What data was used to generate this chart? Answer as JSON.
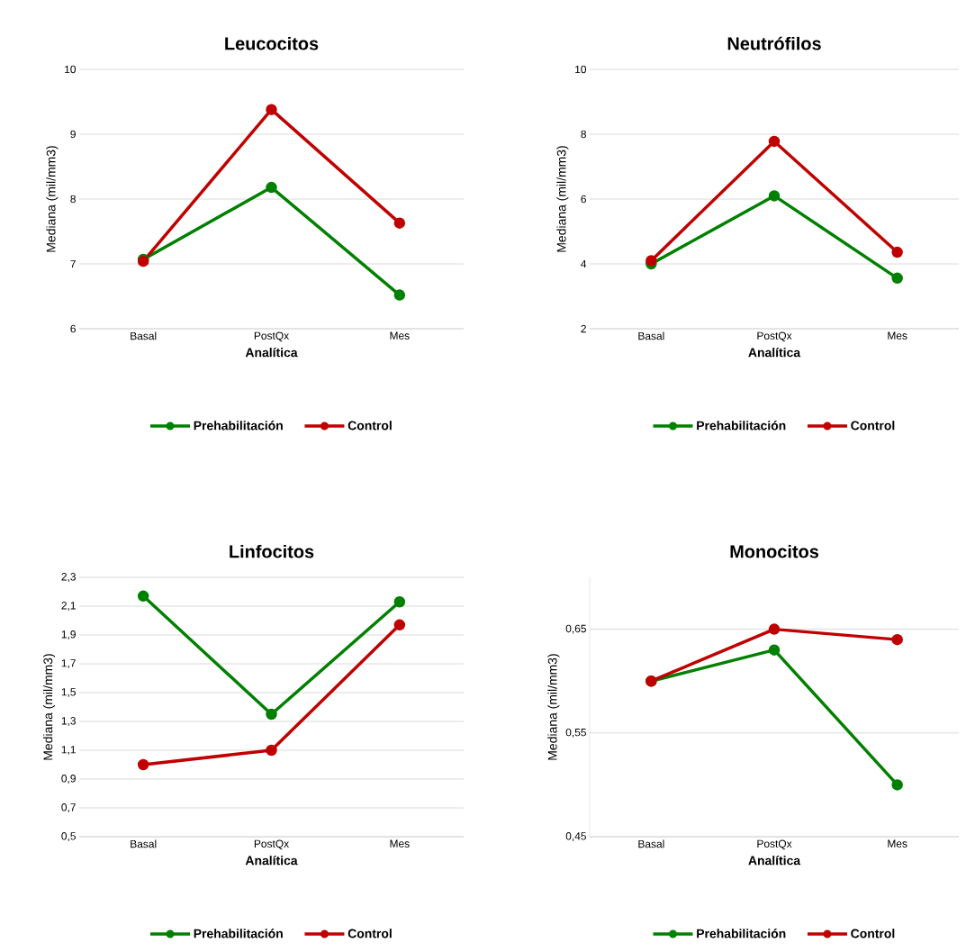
{
  "chart_data": [
    {
      "type": "line",
      "title": "Leucocitos",
      "xlabel": "Analítica",
      "ylabel": "Mediana (mil/mm3)",
      "categories": [
        "Basal",
        "PostQx",
        "Mes"
      ],
      "ylim": [
        6,
        10
      ],
      "yticks": [
        6,
        7,
        8,
        9,
        10
      ],
      "grid": "y",
      "legend": "bottom",
      "marker": "circle",
      "series": [
        {
          "name": "Prehabilitación",
          "color": "#008000",
          "values": [
            7.07,
            8.18,
            6.52
          ]
        },
        {
          "name": "Control",
          "color": "#c00000",
          "values": [
            7.04,
            9.38,
            7.63
          ]
        }
      ]
    },
    {
      "type": "line",
      "title": "Neutrófilos",
      "xlabel": "Analítica",
      "ylabel": "Mediana (mil/mm3)",
      "categories": [
        "Basal",
        "PostQx",
        "Mes"
      ],
      "ylim": [
        2,
        10
      ],
      "yticks": [
        2,
        4,
        6,
        8,
        10
      ],
      "grid": "y",
      "legend": "bottom",
      "marker": "circle",
      "series": [
        {
          "name": "Prehabilitación",
          "color": "#008000",
          "values": [
            4.0,
            6.1,
            3.56
          ]
        },
        {
          "name": "Control",
          "color": "#c00000",
          "values": [
            4.1,
            7.78,
            4.36
          ]
        }
      ]
    },
    {
      "type": "line",
      "title": "Linfocitos",
      "xlabel": "Analítica",
      "ylabel": "Mediana (mil/mm3)",
      "categories": [
        "Basal",
        "PostQx",
        "Mes"
      ],
      "ylim": [
        0.5,
        2.3
      ],
      "yticks": [
        {
          "value": 0.5,
          "label": "0,5"
        },
        {
          "value": 0.7,
          "label": "0,7"
        },
        {
          "value": 0.9,
          "label": "0,9"
        },
        {
          "value": 1.1,
          "label": "1,1"
        },
        {
          "value": 1.3,
          "label": "1,3"
        },
        {
          "value": 1.5,
          "label": "1,5"
        },
        {
          "value": 1.7,
          "label": "1,7"
        },
        {
          "value": 1.9,
          "label": "1,9"
        },
        {
          "value": 2.1,
          "label": "2,1"
        },
        {
          "value": 2.3,
          "label": "2,3"
        }
      ],
      "grid": "y",
      "legend": "bottom",
      "marker": "circle",
      "series": [
        {
          "name": "Prehabilitación",
          "color": "#008000",
          "values": [
            2.17,
            1.35,
            2.13
          ]
        },
        {
          "name": "Control",
          "color": "#c00000",
          "values": [
            1.0,
            1.1,
            1.97
          ]
        }
      ]
    },
    {
      "type": "line",
      "title": "Monocitos",
      "xlabel": "Analítica",
      "ylabel": "Mediana (mil/mm3)",
      "categories": [
        "Basal",
        "PostQx",
        "Mes"
      ],
      "ylim": [
        0.45,
        0.7
      ],
      "yticks": [
        {
          "value": 0.45,
          "label": "0,45"
        },
        {
          "value": 0.55,
          "label": "0,55"
        },
        {
          "value": 0.65,
          "label": "0,65"
        }
      ],
      "grid": "y",
      "legend": "bottom",
      "marker": "circle",
      "series": [
        {
          "name": "Prehabilitación",
          "color": "#008000",
          "values": [
            0.6,
            0.63,
            0.5
          ]
        },
        {
          "name": "Control",
          "color": "#c00000",
          "values": [
            0.6,
            0.65,
            0.64
          ]
        }
      ]
    }
  ]
}
